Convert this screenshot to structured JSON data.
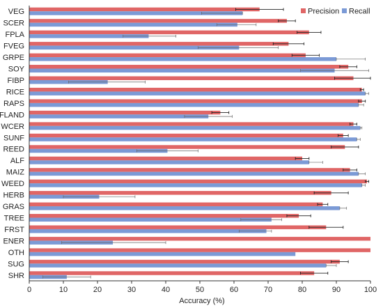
{
  "chart_data": {
    "type": "bar",
    "orientation": "horizontal",
    "xlabel": "Accuracy (%)",
    "ylabel": "",
    "xlim": [
      0,
      100
    ],
    "xticks": [
      0,
      10,
      20,
      30,
      40,
      50,
      60,
      70,
      80,
      90,
      100
    ],
    "grid": false,
    "legend_position": "top-right",
    "categories": [
      "VEG",
      "SCER",
      "FPLA",
      "FVEG",
      "GRPE",
      "SOY",
      "FIBP",
      "RICE",
      "RAPS",
      "FLAND",
      "WCER",
      "SUNF",
      "REED",
      "ALF",
      "MAIZ",
      "WEED",
      "HERB",
      "GRAS",
      "TREE",
      "FRST",
      "ENER",
      "OTH",
      "SUG",
      "SHR"
    ],
    "series": [
      {
        "name": "Precision",
        "color": "#e06666",
        "values": [
          67.5,
          75.5,
          82,
          76,
          81,
          93.5,
          95,
          97.5,
          97.5,
          56,
          95,
          92,
          92.5,
          80,
          94,
          99,
          88.5,
          86,
          79,
          87,
          100,
          100,
          91,
          83.5
        ],
        "errors": [
          7,
          2.5,
          3.5,
          4.5,
          4,
          2.5,
          5.5,
          0.5,
          1,
          2.5,
          1,
          1.5,
          4,
          2,
          2,
          0.5,
          5,
          1.5,
          3.5,
          5,
          0,
          0,
          2.5,
          4
        ]
      },
      {
        "name": "Recall",
        "color": "#7b9ad6",
        "values": [
          62.5,
          61,
          35,
          61.5,
          90,
          89.5,
          23,
          98.5,
          96.5,
          52.5,
          97,
          96,
          40.5,
          82,
          96.5,
          97.5,
          20.5,
          91,
          71,
          69.5,
          24.5,
          78,
          87,
          11
        ]
      }
    ],
    "error_bars_right": [
      0,
      5.5,
      8,
      11.5,
      8.5,
      10,
      11,
      1,
      1.5,
      7,
      0.5,
      1,
      9,
      4,
      2,
      1,
      10.5,
      2,
      3,
      1.5,
      15.5,
      0,
      3,
      7
    ],
    "error_bars_left": [
      12,
      6,
      7.5,
      12,
      0,
      10,
      11.5,
      0,
      0,
      7,
      0,
      0,
      9,
      0,
      0,
      0,
      10.5,
      0,
      9,
      8,
      15,
      0,
      0,
      7
    ]
  }
}
